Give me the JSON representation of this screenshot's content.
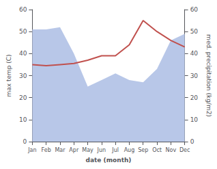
{
  "chart_data": {
    "type": "line",
    "categories": [
      "Jan",
      "Feb",
      "Mar",
      "Apr",
      "May",
      "Jun",
      "Jul",
      "Aug",
      "Sep",
      "Oct",
      "Nov",
      "Dec"
    ],
    "series": [
      {
        "type": "area",
        "color": "#b8c7e8",
        "axis": "y2",
        "values": [
          51,
          51,
          52,
          40,
          25,
          28,
          31,
          28,
          27,
          33,
          46,
          49
        ]
      },
      {
        "type": "line",
        "color": "#c0504d",
        "values": [
          35,
          34.5,
          35,
          35.5,
          37,
          39,
          39,
          44,
          55,
          50,
          46,
          43
        ]
      }
    ],
    "xlabel": "date (month)",
    "ylabel": "max temp (C)",
    "y2label": "med. precipitation (kg/m2)",
    "ylim": [
      0,
      60
    ],
    "yticks": [
      0,
      10,
      20,
      30,
      40,
      50,
      60
    ],
    "y2lim": [
      0,
      60
    ],
    "y2ticks": [
      0,
      10,
      20,
      30,
      40,
      50,
      60
    ],
    "grid": false
  }
}
